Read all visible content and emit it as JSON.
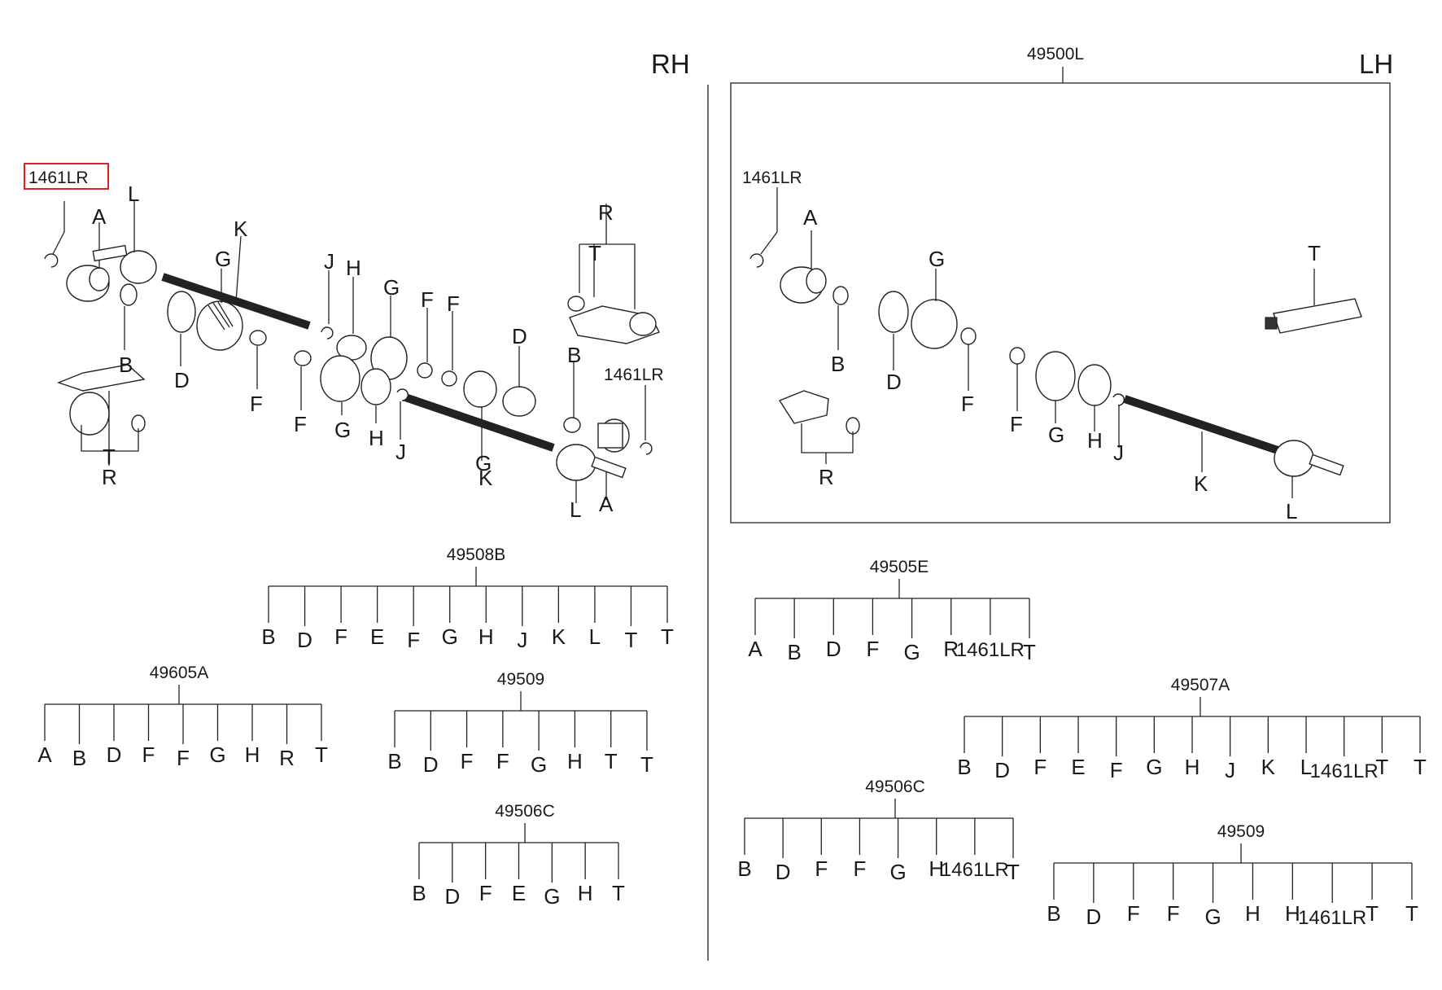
{
  "sides": {
    "rh": "RH",
    "lh": "LH"
  },
  "assembly": {
    "lh_code": "49500L"
  },
  "highlight": {
    "code": "1461LR",
    "color": "#e02020"
  },
  "rh_callouts": [
    {
      "key": "l1",
      "text": "L"
    },
    {
      "key": "a1",
      "text": "A"
    },
    {
      "key": "k1",
      "text": "K"
    },
    {
      "key": "g1",
      "text": "G"
    },
    {
      "key": "j1",
      "text": "J"
    },
    {
      "key": "h1",
      "text": "H"
    },
    {
      "key": "g2",
      "text": "G"
    },
    {
      "key": "f1",
      "text": "F"
    },
    {
      "key": "f2",
      "text": "F"
    },
    {
      "key": "d1",
      "text": "D"
    },
    {
      "key": "r1",
      "text": "R"
    },
    {
      "key": "t1",
      "text": "T"
    },
    {
      "key": "b1",
      "text": "B"
    },
    {
      "key": "b2",
      "text": "B"
    },
    {
      "key": "code2",
      "text": "1461LR"
    },
    {
      "key": "d2",
      "text": "D"
    },
    {
      "key": "f3",
      "text": "F"
    },
    {
      "key": "f4",
      "text": "F"
    },
    {
      "key": "g3",
      "text": "G"
    },
    {
      "key": "h2",
      "text": "H"
    },
    {
      "key": "j2",
      "text": "J"
    },
    {
      "key": "g4",
      "text": "G"
    },
    {
      "key": "k2",
      "text": "K"
    },
    {
      "key": "l2",
      "text": "L"
    },
    {
      "key": "a2",
      "text": "A"
    },
    {
      "key": "t2",
      "text": "T"
    },
    {
      "key": "r2",
      "text": "R"
    }
  ],
  "lh_callouts": [
    {
      "key": "code",
      "text": "1461LR"
    },
    {
      "key": "a",
      "text": "A"
    },
    {
      "key": "g",
      "text": "G"
    },
    {
      "key": "t",
      "text": "T"
    },
    {
      "key": "b",
      "text": "B"
    },
    {
      "key": "d",
      "text": "D"
    },
    {
      "key": "f1",
      "text": "F"
    },
    {
      "key": "f2",
      "text": "F"
    },
    {
      "key": "g2",
      "text": "G"
    },
    {
      "key": "h",
      "text": "H"
    },
    {
      "key": "j",
      "text": "J"
    },
    {
      "key": "r",
      "text": "R"
    },
    {
      "key": "k",
      "text": "K"
    },
    {
      "key": "l",
      "text": "L"
    }
  ],
  "kits": [
    {
      "code": "49508B",
      "items": [
        "B",
        "D",
        "F",
        "E",
        "F",
        "G",
        "H",
        "J",
        "K",
        "L",
        "T",
        "T"
      ]
    },
    {
      "code": "49605A",
      "items": [
        "A",
        "B",
        "D",
        "F",
        "F",
        "G",
        "H",
        "R",
        "T"
      ]
    },
    {
      "code": "49509",
      "items": [
        "B",
        "D",
        "F",
        "F",
        "G",
        "H",
        "T",
        "T"
      ]
    },
    {
      "code": "49506C",
      "items": [
        "B",
        "D",
        "F",
        "E",
        "G",
        "H",
        "T"
      ]
    },
    {
      "code": "49505E",
      "items": [
        "A",
        "B",
        "D",
        "F",
        "G",
        "R",
        "1461LR",
        "T"
      ]
    },
    {
      "code": "49507A",
      "items": [
        "B",
        "D",
        "F",
        "E",
        "F",
        "G",
        "H",
        "J",
        "K",
        "L",
        "1461LR",
        "T",
        "T"
      ]
    },
    {
      "code": "49506C",
      "items": [
        "B",
        "D",
        "F",
        "F",
        "G",
        "H",
        "1461LR",
        "T"
      ]
    },
    {
      "code": "49509",
      "items": [
        "B",
        "D",
        "F",
        "F",
        "G",
        "H",
        "H",
        "1461LR",
        "T",
        "T"
      ]
    }
  ]
}
